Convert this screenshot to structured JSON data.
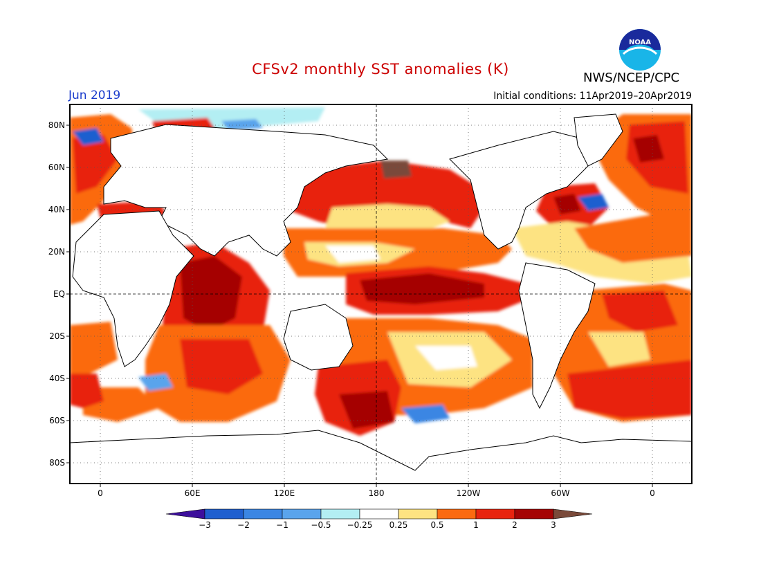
{
  "header": {
    "title": "CFSv2 monthly SST anomalies (K)",
    "title_color": "#cc0000",
    "agency": "NWS/NCEP/CPC",
    "logo_text": "NOAA",
    "month": "Jun 2019",
    "month_color": "#1a3ccc",
    "initial_conditions": "Initial conditions: 11Apr2019–20Apr2019"
  },
  "map": {
    "lat_labels": [
      "80N",
      "60N",
      "40N",
      "20N",
      "EQ",
      "20S",
      "40S",
      "60S",
      "80S"
    ],
    "lon_labels": [
      "0",
      "60E",
      "120E",
      "180",
      "120W",
      "60W",
      "0"
    ]
  },
  "colorbar": {
    "labels": [
      "-3",
      "-2",
      "-1",
      "-0.5",
      "-0.25",
      "0.25",
      "0.5",
      "1",
      "2",
      "3"
    ],
    "colors": [
      "#3d0f9c",
      "#1f5fcf",
      "#3b86e3",
      "#5aa4ec",
      "#b3eef3",
      "#ffffff",
      "#fde382",
      "#fb6a10",
      "#e8240f",
      "#a50505",
      "#7a4a3a"
    ]
  }
}
